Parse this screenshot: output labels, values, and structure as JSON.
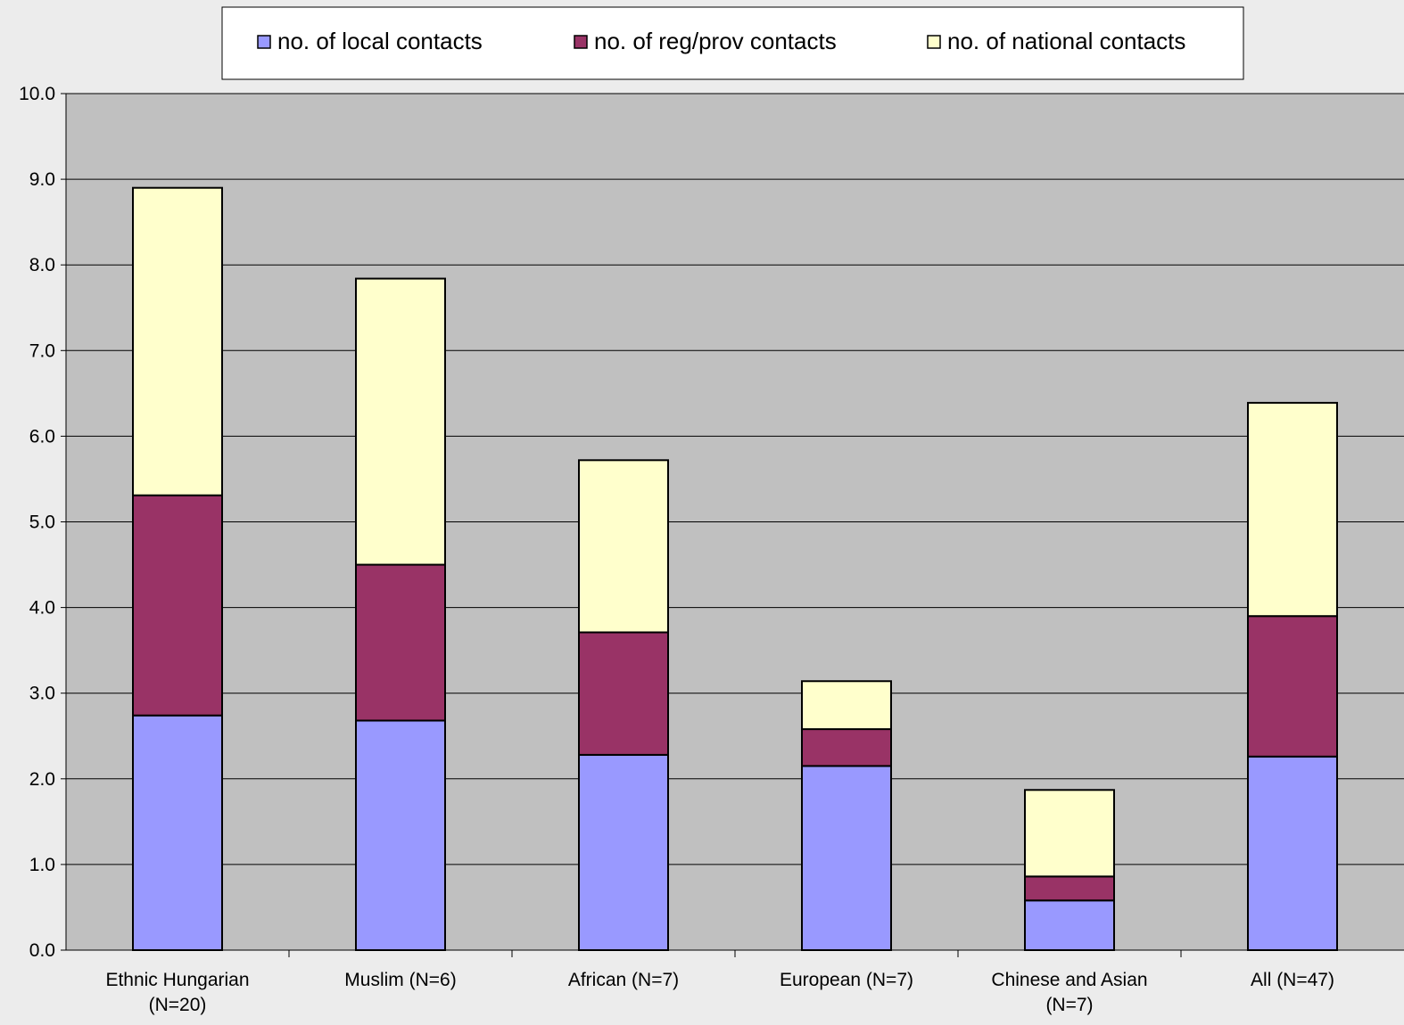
{
  "chart_data": {
    "type": "bar",
    "stacked": true,
    "categories": [
      [
        "Ethnic Hungarian",
        "(N=20)"
      ],
      [
        "Muslim (N=6)"
      ],
      [
        "African (N=7)"
      ],
      [
        "European (N=7)"
      ],
      [
        "Chinese and Asian",
        "(N=7)"
      ],
      [
        "All (N=47)"
      ]
    ],
    "series": [
      {
        "name": "no. of local contacts",
        "color": "#9999FF",
        "values": [
          2.74,
          2.68,
          2.28,
          2.15,
          0.58,
          2.26
        ]
      },
      {
        "name": "no. of reg/prov contacts",
        "color": "#993366",
        "values": [
          2.57,
          1.82,
          1.43,
          0.43,
          0.28,
          1.64
        ]
      },
      {
        "name": "no. of national contacts",
        "color": "#FFFFCC",
        "values": [
          3.59,
          3.34,
          2.01,
          0.56,
          1.01,
          2.49
        ]
      }
    ],
    "ylim": [
      0,
      10
    ],
    "ytick_step": 1,
    "ytick_labels": [
      "0.0",
      "1.0",
      "2.0",
      "3.0",
      "4.0",
      "5.0",
      "6.0",
      "7.0",
      "8.0",
      "9.0",
      "10.0"
    ],
    "xlabel": "",
    "ylabel": "",
    "grid": true,
    "legend_position": "top",
    "plot_background": "#C0C0C0"
  }
}
